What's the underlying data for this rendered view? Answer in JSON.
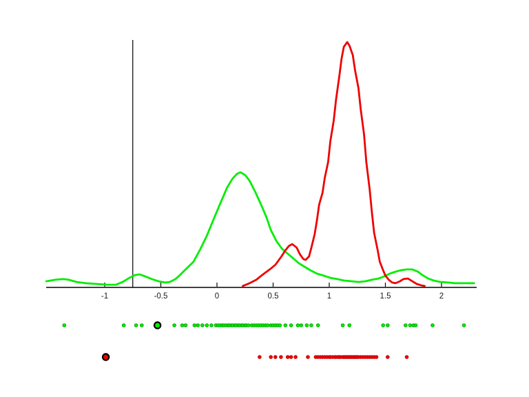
{
  "figure": {
    "background": "#ffffff"
  },
  "chart_data": {
    "type": "line",
    "subtype": "kernel-density-with-rug",
    "title": "",
    "xlabel": "",
    "ylabel": "",
    "grid": false,
    "legend": null,
    "x_axis": {
      "min": -1.52,
      "max": 2.31,
      "ticks": [
        {
          "value": -1,
          "label": "-1"
        },
        {
          "value": -0.5,
          "label": "-0.5"
        },
        {
          "value": 0,
          "label": "0"
        },
        {
          "value": 0.5,
          "label": "0.5"
        },
        {
          "value": 1,
          "label": "1"
        },
        {
          "value": 1.5,
          "label": "1.5"
        },
        {
          "value": 2,
          "label": "2"
        }
      ]
    },
    "vertical_reference_line_x": -0.75,
    "colors": {
      "green": "#00ee00",
      "green_edge": "#00aa00",
      "red": "#ee0000",
      "red_edge": "#cc0000",
      "axis": "#000000"
    },
    "series": [
      {
        "name": "green-density",
        "color": "#00ee00",
        "peak": {
          "x": 0.21,
          "height": 0.468
        },
        "points": [
          [
            -1.52,
            0.025
          ],
          [
            -1.44,
            0.031
          ],
          [
            -1.37,
            0.034
          ],
          [
            -1.32,
            0.031
          ],
          [
            -1.25,
            0.022
          ],
          [
            -1.17,
            0.017
          ],
          [
            -1.07,
            0.014
          ],
          [
            -0.98,
            0.011
          ],
          [
            -0.9,
            0.011
          ],
          [
            -0.84,
            0.022
          ],
          [
            -0.78,
            0.039
          ],
          [
            -0.73,
            0.05
          ],
          [
            -0.69,
            0.053
          ],
          [
            -0.64,
            0.045
          ],
          [
            -0.58,
            0.034
          ],
          [
            -0.52,
            0.025
          ],
          [
            -0.46,
            0.02
          ],
          [
            -0.42,
            0.022
          ],
          [
            -0.37,
            0.034
          ],
          [
            -0.33,
            0.05
          ],
          [
            -0.28,
            0.073
          ],
          [
            -0.21,
            0.104
          ],
          [
            -0.15,
            0.154
          ],
          [
            -0.09,
            0.21
          ],
          [
            -0.03,
            0.277
          ],
          [
            0.03,
            0.342
          ],
          [
            0.09,
            0.406
          ],
          [
            0.14,
            0.443
          ],
          [
            0.18,
            0.462
          ],
          [
            0.21,
            0.468
          ],
          [
            0.25,
            0.457
          ],
          [
            0.29,
            0.434
          ],
          [
            0.34,
            0.389
          ],
          [
            0.39,
            0.339
          ],
          [
            0.44,
            0.286
          ],
          [
            0.48,
            0.233
          ],
          [
            0.53,
            0.188
          ],
          [
            0.58,
            0.157
          ],
          [
            0.63,
            0.137
          ],
          [
            0.68,
            0.118
          ],
          [
            0.73,
            0.098
          ],
          [
            0.78,
            0.084
          ],
          [
            0.83,
            0.07
          ],
          [
            0.89,
            0.056
          ],
          [
            0.95,
            0.048
          ],
          [
            1.01,
            0.039
          ],
          [
            1.07,
            0.034
          ],
          [
            1.13,
            0.028
          ],
          [
            1.2,
            0.025
          ],
          [
            1.26,
            0.022
          ],
          [
            1.32,
            0.025
          ],
          [
            1.38,
            0.031
          ],
          [
            1.44,
            0.036
          ],
          [
            1.49,
            0.045
          ],
          [
            1.54,
            0.056
          ],
          [
            1.59,
            0.064
          ],
          [
            1.64,
            0.07
          ],
          [
            1.69,
            0.073
          ],
          [
            1.74,
            0.073
          ],
          [
            1.79,
            0.064
          ],
          [
            1.83,
            0.05
          ],
          [
            1.88,
            0.036
          ],
          [
            1.93,
            0.028
          ],
          [
            1.99,
            0.022
          ],
          [
            2.06,
            0.02
          ],
          [
            2.12,
            0.017
          ],
          [
            2.21,
            0.017
          ],
          [
            2.29,
            0.017
          ]
        ]
      },
      {
        "name": "red-density",
        "color": "#ee0000",
        "peak": {
          "x": 1.16,
          "height": 0.997
        },
        "points": [
          [
            0.23,
            0.006
          ],
          [
            0.29,
            0.017
          ],
          [
            0.35,
            0.031
          ],
          [
            0.41,
            0.053
          ],
          [
            0.47,
            0.073
          ],
          [
            0.52,
            0.092
          ],
          [
            0.57,
            0.123
          ],
          [
            0.61,
            0.151
          ],
          [
            0.64,
            0.168
          ],
          [
            0.67,
            0.176
          ],
          [
            0.71,
            0.162
          ],
          [
            0.74,
            0.134
          ],
          [
            0.77,
            0.115
          ],
          [
            0.79,
            0.112
          ],
          [
            0.82,
            0.126
          ],
          [
            0.84,
            0.16
          ],
          [
            0.87,
            0.216
          ],
          [
            0.89,
            0.272
          ],
          [
            0.91,
            0.336
          ],
          [
            0.94,
            0.384
          ],
          [
            0.96,
            0.445
          ],
          [
            0.99,
            0.51
          ],
          [
            1.01,
            0.594
          ],
          [
            1.04,
            0.678
          ],
          [
            1.06,
            0.762
          ],
          [
            1.09,
            0.86
          ],
          [
            1.11,
            0.93
          ],
          [
            1.13,
            0.978
          ],
          [
            1.16,
            0.997
          ],
          [
            1.18,
            0.983
          ],
          [
            1.21,
            0.944
          ],
          [
            1.23,
            0.882
          ],
          [
            1.26,
            0.81
          ],
          [
            1.28,
            0.726
          ],
          [
            1.31,
            0.622
          ],
          [
            1.33,
            0.51
          ],
          [
            1.36,
            0.398
          ],
          [
            1.38,
            0.305
          ],
          [
            1.4,
            0.221
          ],
          [
            1.43,
            0.154
          ],
          [
            1.45,
            0.104
          ],
          [
            1.48,
            0.07
          ],
          [
            1.5,
            0.048
          ],
          [
            1.53,
            0.031
          ],
          [
            1.56,
            0.02
          ],
          [
            1.59,
            0.017
          ],
          [
            1.63,
            0.025
          ],
          [
            1.66,
            0.034
          ],
          [
            1.7,
            0.036
          ],
          [
            1.74,
            0.025
          ],
          [
            1.78,
            0.014
          ],
          [
            1.82,
            0.008
          ],
          [
            1.85,
            0.006
          ]
        ]
      }
    ],
    "rug_strips": [
      {
        "name": "green-samples",
        "color": "#00ee00",
        "edge": "#00aa00",
        "highlighted_value": -0.53,
        "values": [
          -1.36,
          -0.83,
          -0.72,
          -0.67,
          -0.38,
          -0.31,
          -0.28,
          -0.2,
          -0.17,
          -0.13,
          -0.09,
          -0.05,
          -0.01,
          0.01,
          0.03,
          0.05,
          0.06,
          0.08,
          0.1,
          0.11,
          0.13,
          0.14,
          0.16,
          0.17,
          0.19,
          0.2,
          0.22,
          0.23,
          0.25,
          0.26,
          0.28,
          0.31,
          0.33,
          0.35,
          0.37,
          0.39,
          0.41,
          0.43,
          0.45,
          0.48,
          0.5,
          0.52,
          0.54,
          0.56,
          0.61,
          0.66,
          0.72,
          0.75,
          0.8,
          0.84,
          0.9,
          1.12,
          1.18,
          1.48,
          1.52,
          1.68,
          1.72,
          1.75,
          1.77,
          1.92,
          2.2
        ]
      },
      {
        "name": "red-samples",
        "color": "#ee0000",
        "edge": "#cc0000",
        "highlighted_value": -0.99,
        "values": [
          0.38,
          0.48,
          0.52,
          0.57,
          0.63,
          0.66,
          0.7,
          0.81,
          0.88,
          0.9,
          0.92,
          0.94,
          0.96,
          0.98,
          1.0,
          1.01,
          1.03,
          1.05,
          1.06,
          1.08,
          1.09,
          1.1,
          1.12,
          1.13,
          1.14,
          1.15,
          1.16,
          1.17,
          1.18,
          1.19,
          1.2,
          1.21,
          1.22,
          1.23,
          1.24,
          1.25,
          1.26,
          1.28,
          1.3,
          1.32,
          1.34,
          1.36,
          1.38,
          1.4,
          1.42,
          1.52,
          1.69
        ]
      }
    ]
  }
}
